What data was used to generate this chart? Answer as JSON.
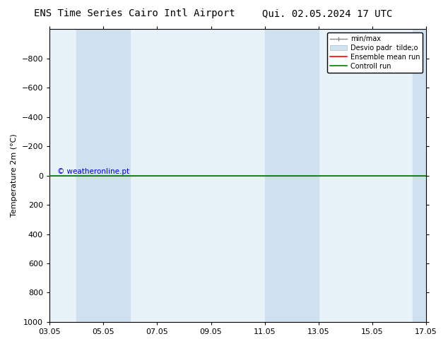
{
  "title_left": "ENS Time Series Cairo Intl Airport",
  "title_right": "Qui. 02.05.2024 17 UTC",
  "ylabel": "Temperature 2m (°C)",
  "watermark": "© weatheronline.pt",
  "ylim_top": -1000,
  "ylim_bottom": 1000,
  "yticks": [
    -800,
    -600,
    -400,
    -200,
    0,
    200,
    400,
    600,
    800,
    1000
  ],
  "xtick_labels": [
    "03.05",
    "05.05",
    "07.05",
    "09.05",
    "11.05",
    "13.05",
    "15.05",
    "17.05"
  ],
  "xtick_positions": [
    0,
    2,
    4,
    6,
    8,
    10,
    12,
    14
  ],
  "xlim": [
    0,
    14
  ],
  "shaded_bands": [
    {
      "x_start": 1,
      "x_end": 3,
      "color": "#cfe0ef"
    },
    {
      "x_start": 8,
      "x_end": 10,
      "color": "#cfe0ef"
    },
    {
      "x_start": 13.5,
      "x_end": 14,
      "color": "#cfe0ef"
    }
  ],
  "plot_bg_color": "#e8f2f9",
  "control_run_y": 0,
  "control_run_color": "#008000",
  "control_run_lw": 1.2,
  "ensemble_mean_color": "#ff0000",
  "ensemble_mean_y": 0,
  "ensemble_mean_lw": 0.8,
  "legend_labels": [
    "min/max",
    "Desvio padr  tilde;o",
    "Ensemble mean run",
    "Controll run"
  ],
  "legend_colors_line": [
    "#888888",
    "#bbccdd",
    "#ff0000",
    "#008000"
  ],
  "background_color": "#ffffff",
  "watermark_color": "#0000cc",
  "title_fontsize": 10,
  "axis_fontsize": 8,
  "tick_fontsize": 8,
  "legend_fontsize": 7
}
